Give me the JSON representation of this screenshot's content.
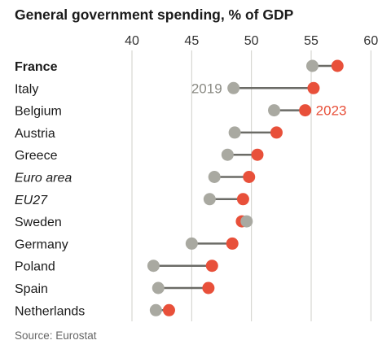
{
  "chart_data": {
    "type": "dumbbell",
    "title": "General government spending, % of GDP",
    "source": "Source: Eurostat",
    "xlim": [
      37,
      61
    ],
    "x_ticks": [
      "40",
      "45",
      "50",
      "55",
      "60"
    ],
    "x_tick_values": [
      40,
      45,
      50,
      55,
      60
    ],
    "grid": true,
    "series": [
      {
        "name": "2019",
        "color": "#a9a9a1"
      },
      {
        "name": "2023",
        "color": "#e8503a"
      }
    ],
    "categories": [
      {
        "label": "France",
        "style": "bold",
        "v2019": 55.1,
        "v2023": 57.2
      },
      {
        "label": "Italy",
        "style": "normal",
        "v2019": 48.5,
        "v2023": 55.2
      },
      {
        "label": "Belgium",
        "style": "normal",
        "v2019": 51.9,
        "v2023": 54.5
      },
      {
        "label": "Austria",
        "style": "normal",
        "v2019": 48.6,
        "v2023": 52.1
      },
      {
        "label": "Greece",
        "style": "normal",
        "v2019": 48.0,
        "v2023": 50.5
      },
      {
        "label": "Euro area",
        "style": "italic",
        "v2019": 46.9,
        "v2023": 49.8
      },
      {
        "label": "EU27",
        "style": "italic",
        "v2019": 46.5,
        "v2023": 49.3
      },
      {
        "label": "Sweden",
        "style": "normal",
        "v2019": 49.6,
        "v2023": 49.2
      },
      {
        "label": "Germany",
        "style": "normal",
        "v2019": 45.0,
        "v2023": 48.4
      },
      {
        "label": "Poland",
        "style": "normal",
        "v2019": 41.8,
        "v2023": 46.7
      },
      {
        "label": "Spain",
        "style": "normal",
        "v2019": 42.2,
        "v2023": 46.4
      },
      {
        "label": "Netherlands",
        "style": "normal",
        "v2019": 42.0,
        "v2023": 43.1
      }
    ],
    "annotations": [
      {
        "text": "2019",
        "row": 1,
        "series": "2019"
      },
      {
        "text": "2023",
        "row": 2,
        "series": "2023"
      }
    ]
  }
}
